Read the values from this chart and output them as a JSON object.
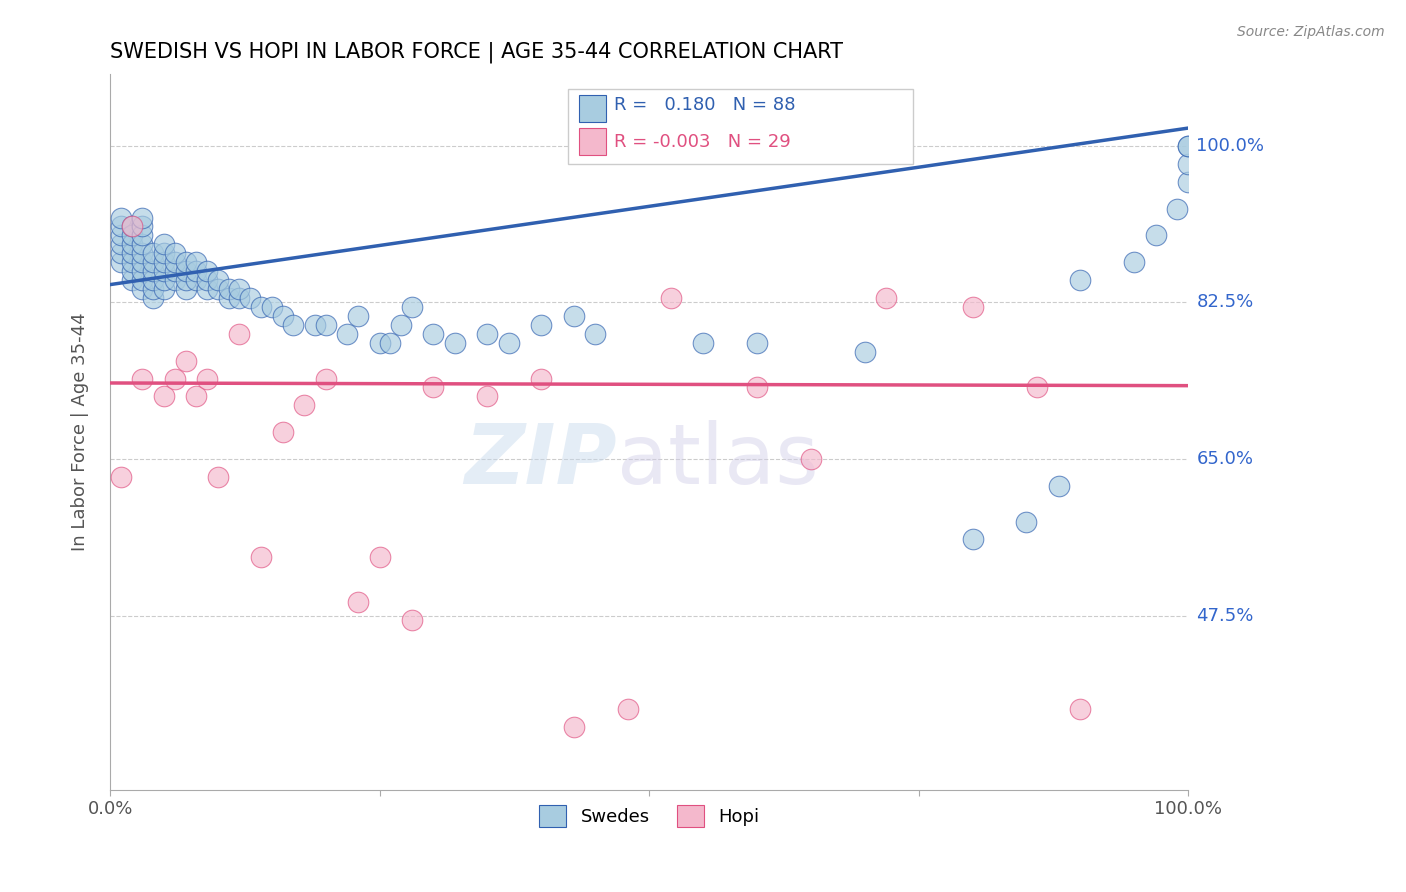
{
  "title": "SWEDISH VS HOPI IN LABOR FORCE | AGE 35-44 CORRELATION CHART",
  "ylabel": "In Labor Force | Age 35-44",
  "source_text": "Source: ZipAtlas.com",
  "xlim": [
    0,
    1
  ],
  "ylim": [
    0.28,
    1.08
  ],
  "yticks": [
    0.475,
    0.65,
    0.825,
    1.0
  ],
  "ytick_labels": [
    "47.5%",
    "65.0%",
    "82.5%",
    "100.0%"
  ],
  "xtick_labels": [
    "0.0%",
    "100.0%"
  ],
  "xticks": [
    0,
    1
  ],
  "blue_R": 0.18,
  "blue_N": 88,
  "pink_R": -0.003,
  "pink_N": 29,
  "blue_color": "#a8cce0",
  "pink_color": "#f4b8cc",
  "blue_line_color": "#3060b0",
  "pink_line_color": "#e05080",
  "legend_blue_label": "Swedes",
  "legend_pink_label": "Hopi",
  "grid_color": "#cccccc",
  "blue_trend_x0": 0.0,
  "blue_trend_y0": 0.845,
  "blue_trend_x1": 1.0,
  "blue_trend_y1": 1.02,
  "pink_trend_x0": 0.0,
  "pink_trend_y0": 0.735,
  "pink_trend_x1": 1.0,
  "pink_trend_y1": 0.732,
  "swedish_x": [
    0.01,
    0.01,
    0.01,
    0.01,
    0.01,
    0.01,
    0.02,
    0.02,
    0.02,
    0.02,
    0.02,
    0.02,
    0.02,
    0.03,
    0.03,
    0.03,
    0.03,
    0.03,
    0.03,
    0.03,
    0.03,
    0.03,
    0.04,
    0.04,
    0.04,
    0.04,
    0.04,
    0.04,
    0.05,
    0.05,
    0.05,
    0.05,
    0.05,
    0.05,
    0.06,
    0.06,
    0.06,
    0.06,
    0.07,
    0.07,
    0.07,
    0.07,
    0.08,
    0.08,
    0.08,
    0.09,
    0.09,
    0.09,
    0.1,
    0.1,
    0.11,
    0.11,
    0.12,
    0.12,
    0.13,
    0.14,
    0.15,
    0.16,
    0.17,
    0.19,
    0.2,
    0.22,
    0.23,
    0.25,
    0.26,
    0.27,
    0.28,
    0.3,
    0.32,
    0.35,
    0.37,
    0.4,
    0.43,
    0.45,
    0.55,
    0.6,
    0.7,
    0.8,
    0.85,
    0.88,
    0.9,
    0.95,
    0.97,
    0.99,
    1.0,
    1.0,
    1.0,
    1.0
  ],
  "swedish_y": [
    0.87,
    0.88,
    0.89,
    0.9,
    0.91,
    0.92,
    0.85,
    0.86,
    0.87,
    0.88,
    0.89,
    0.9,
    0.91,
    0.84,
    0.85,
    0.86,
    0.87,
    0.88,
    0.89,
    0.9,
    0.91,
    0.92,
    0.83,
    0.84,
    0.85,
    0.86,
    0.87,
    0.88,
    0.84,
    0.85,
    0.86,
    0.87,
    0.88,
    0.89,
    0.85,
    0.86,
    0.87,
    0.88,
    0.84,
    0.85,
    0.86,
    0.87,
    0.85,
    0.86,
    0.87,
    0.84,
    0.85,
    0.86,
    0.84,
    0.85,
    0.83,
    0.84,
    0.83,
    0.84,
    0.83,
    0.82,
    0.82,
    0.81,
    0.8,
    0.8,
    0.8,
    0.79,
    0.81,
    0.78,
    0.78,
    0.8,
    0.82,
    0.79,
    0.78,
    0.79,
    0.78,
    0.8,
    0.81,
    0.79,
    0.78,
    0.78,
    0.77,
    0.56,
    0.58,
    0.62,
    0.85,
    0.87,
    0.9,
    0.93,
    0.96,
    0.98,
    1.0,
    1.0
  ],
  "hopi_x": [
    0.01,
    0.02,
    0.03,
    0.05,
    0.06,
    0.07,
    0.08,
    0.09,
    0.1,
    0.12,
    0.14,
    0.16,
    0.18,
    0.2,
    0.23,
    0.25,
    0.28,
    0.3,
    0.35,
    0.4,
    0.43,
    0.48,
    0.52,
    0.6,
    0.65,
    0.72,
    0.8,
    0.86,
    0.9
  ],
  "hopi_y": [
    0.63,
    0.91,
    0.74,
    0.72,
    0.74,
    0.76,
    0.72,
    0.74,
    0.63,
    0.79,
    0.54,
    0.68,
    0.71,
    0.74,
    0.49,
    0.54,
    0.47,
    0.73,
    0.72,
    0.74,
    0.35,
    0.37,
    0.83,
    0.73,
    0.65,
    0.83,
    0.82,
    0.73,
    0.37
  ]
}
